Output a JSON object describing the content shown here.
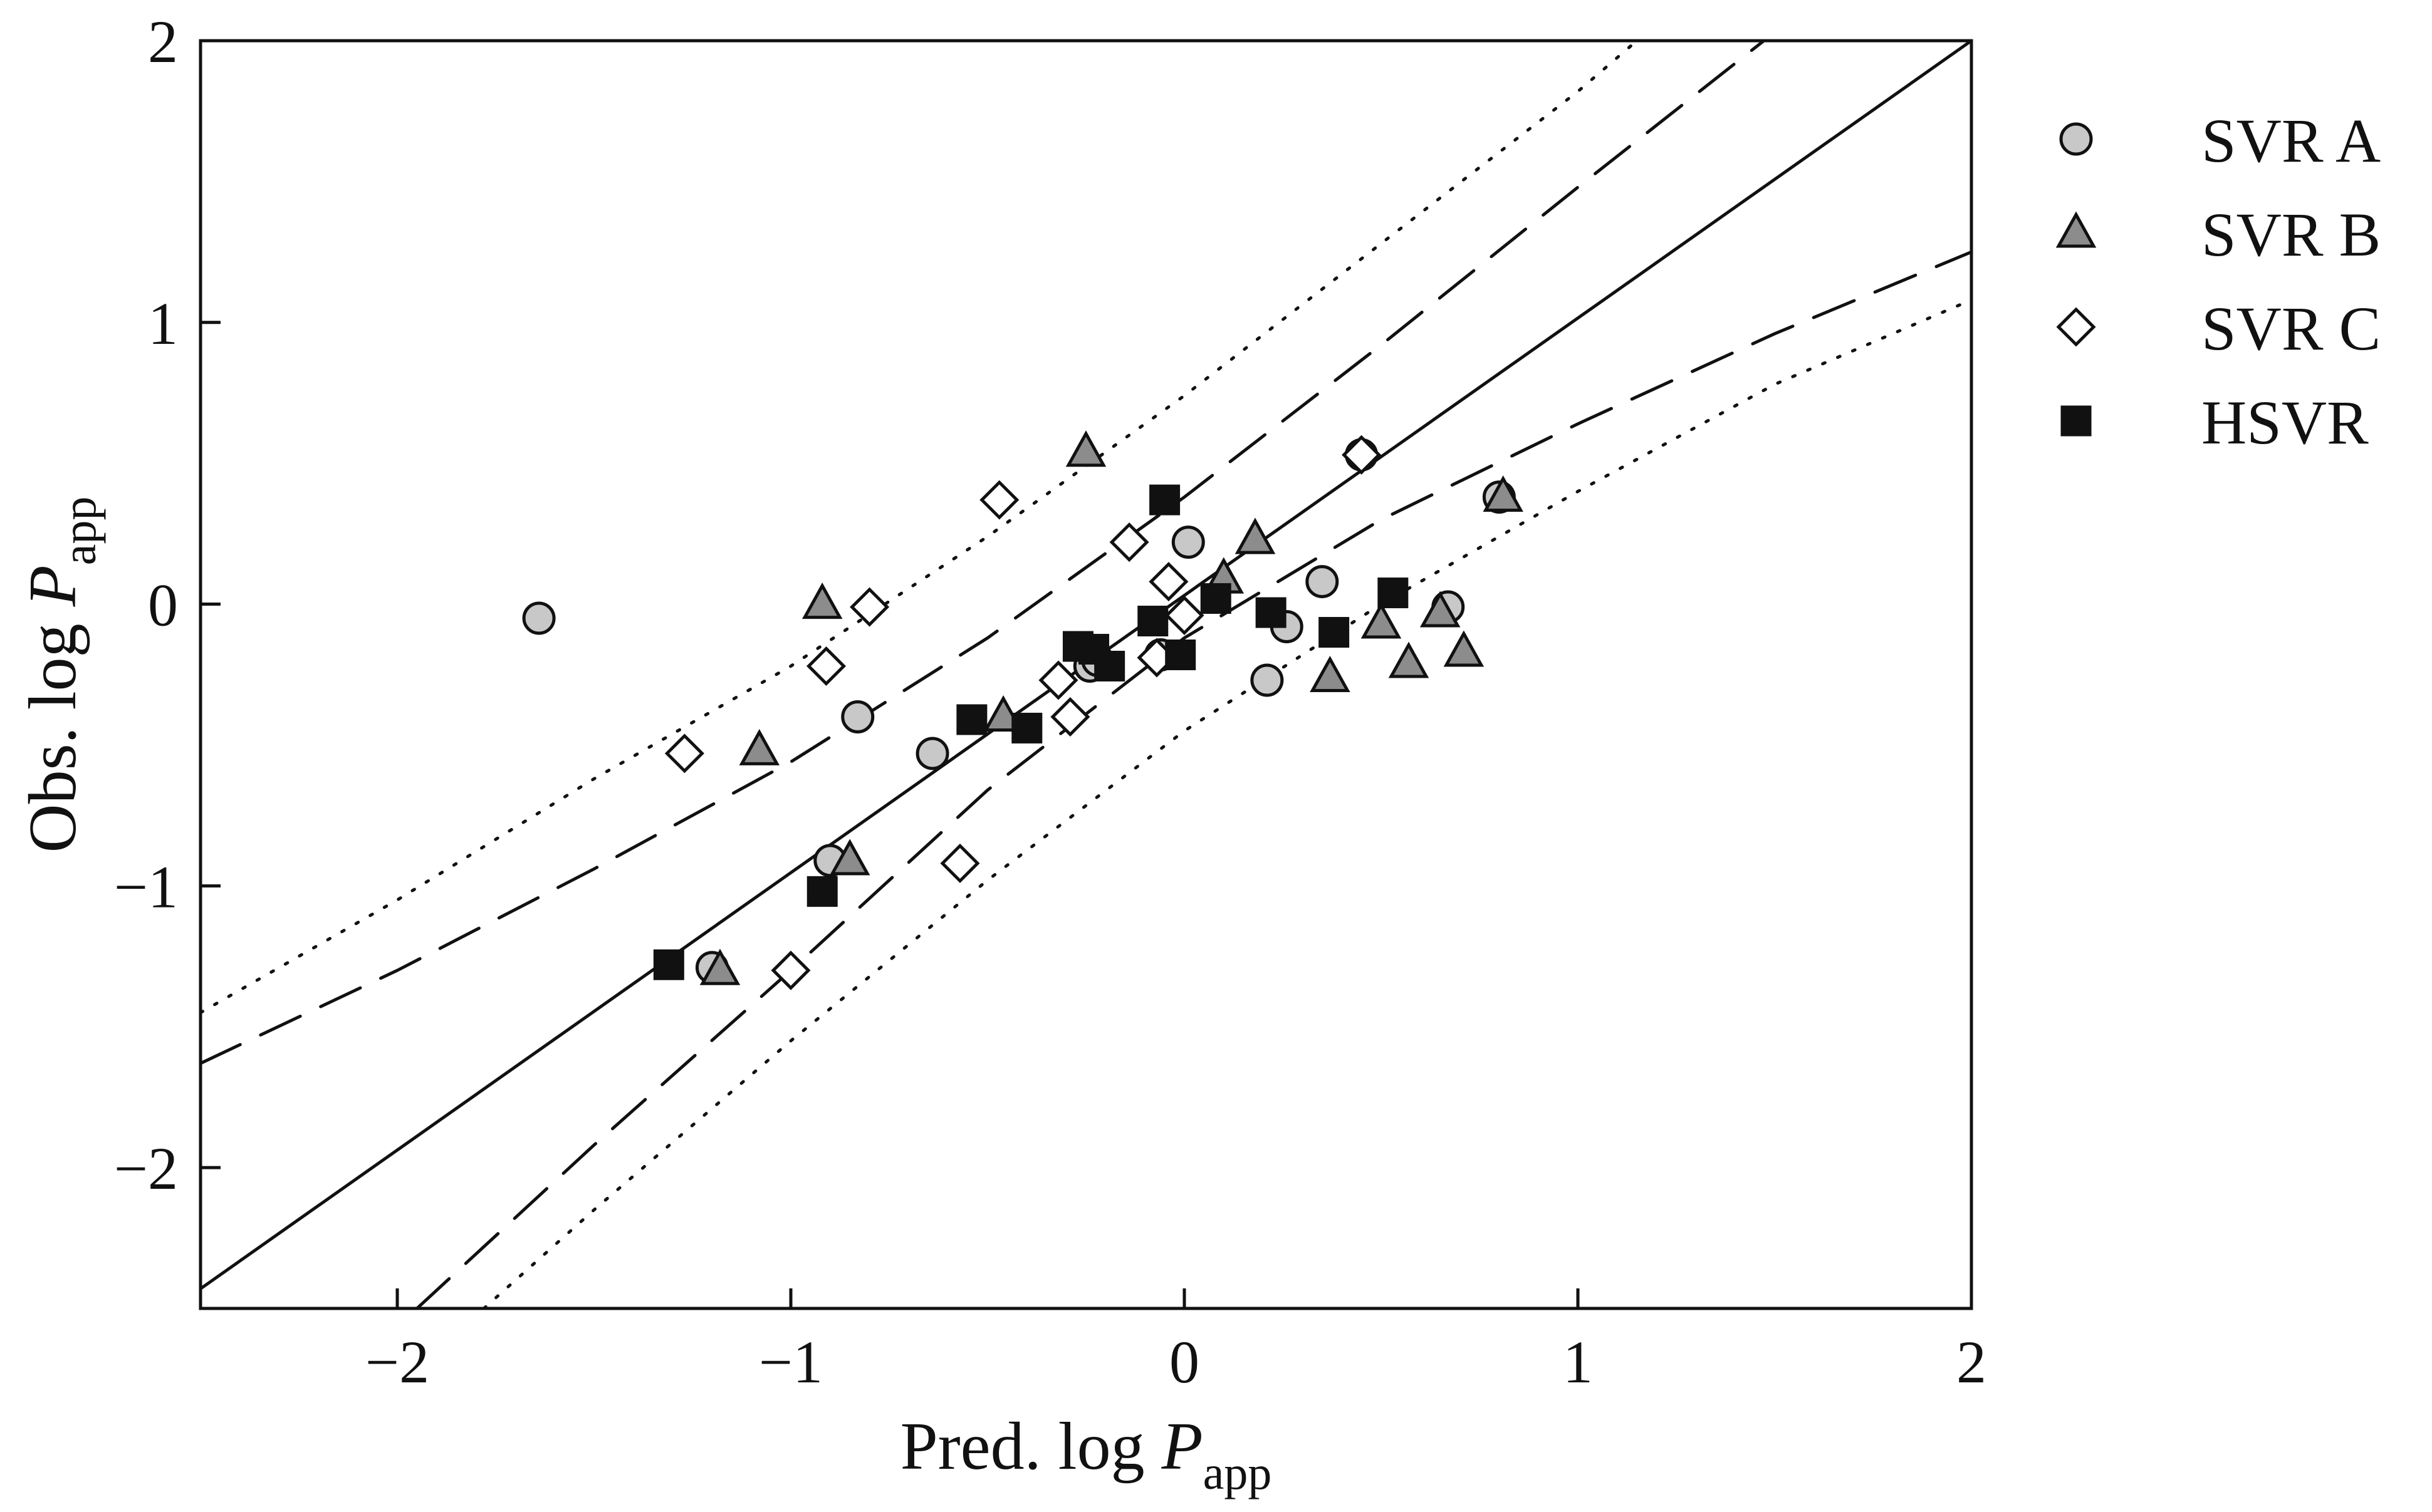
{
  "chart_data": {
    "type": "scatter",
    "title": "",
    "xlabel": {
      "main": "Pred. log ",
      "var": "P",
      "sub": "app"
    },
    "ylabel": {
      "main": "Obs. log ",
      "var": "P",
      "sub": "app"
    },
    "xlim": [
      -2.5,
      2
    ],
    "ylim": [
      -2.5,
      2
    ],
    "grid": false,
    "legend_position": "outside-right",
    "xticks": [
      {
        "value": -2,
        "label": "−2"
      },
      {
        "value": -1,
        "label": "−1"
      },
      {
        "value": 0,
        "label": "0"
      },
      {
        "value": 1,
        "label": "1"
      },
      {
        "value": 2,
        "label": "2"
      }
    ],
    "yticks": [
      {
        "value": -2,
        "label": "−2"
      },
      {
        "value": -1,
        "label": "−1"
      },
      {
        "value": 0,
        "label": "0"
      },
      {
        "value": 1,
        "label": "1"
      },
      {
        "value": 2,
        "label": "2"
      }
    ],
    "series": [
      {
        "name": "SVR A",
        "marker": "circle",
        "color": "#c8c8c8",
        "x": [
          -1.64,
          -1.2,
          -0.9,
          -0.83,
          -0.64,
          -0.24,
          -0.22,
          -0.06,
          0.01,
          0.21,
          0.26,
          0.35,
          0.45,
          0.67,
          0.8
        ],
        "y": [
          -0.05,
          -1.29,
          -0.91,
          -0.4,
          -0.53,
          -0.22,
          -0.2,
          -0.18,
          0.22,
          -0.27,
          -0.08,
          0.08,
          0.53,
          -0.01,
          0.38
        ]
      },
      {
        "name": "SVR B",
        "marker": "triangle",
        "color": "#8c8c8c",
        "x": [
          -1.18,
          -1.08,
          -0.92,
          -0.85,
          -0.46,
          -0.25,
          0.1,
          0.18,
          0.37,
          0.5,
          0.57,
          0.65,
          0.71,
          0.81
        ],
        "y": [
          -1.3,
          -0.52,
          0.0,
          -0.91,
          -0.4,
          0.54,
          0.09,
          0.23,
          -0.26,
          -0.07,
          -0.21,
          -0.03,
          -0.17,
          0.38
        ]
      },
      {
        "name": "SVR C",
        "marker": "diamond",
        "color": "#ffffff",
        "x": [
          -1.27,
          -1.0,
          -0.91,
          -0.8,
          -0.57,
          -0.47,
          -0.32,
          -0.29,
          -0.14,
          -0.07,
          -0.04,
          0.0,
          0.45
        ],
        "y": [
          -0.53,
          -1.3,
          -0.22,
          -0.01,
          -0.92,
          0.37,
          -0.27,
          -0.4,
          0.22,
          -0.19,
          0.08,
          -0.04,
          0.53
        ]
      },
      {
        "name": "HSVR",
        "marker": "square",
        "color": "#111111",
        "x": [
          -1.31,
          -0.92,
          -0.54,
          -0.4,
          -0.27,
          -0.23,
          -0.19,
          -0.08,
          -0.05,
          -0.01,
          0.08,
          0.22,
          0.38,
          0.53
        ],
        "y": [
          -1.28,
          -1.02,
          -0.41,
          -0.44,
          -0.15,
          -0.16,
          -0.22,
          -0.06,
          0.37,
          -0.18,
          0.02,
          -0.03,
          -0.1,
          0.04
        ]
      }
    ],
    "lines": [
      {
        "name": "regression-line",
        "style": "solid",
        "points": [
          [
            -2.5,
            -2.43
          ],
          [
            2.0,
            2.0
          ]
        ]
      },
      {
        "name": "confidence-band-upper",
        "style": "dashed",
        "points": [
          [
            -2.5,
            -1.63
          ],
          [
            -2.0,
            -1.3
          ],
          [
            -1.5,
            -0.94
          ],
          [
            -1.0,
            -0.56
          ],
          [
            -0.5,
            -0.12
          ],
          [
            0.0,
            0.38
          ],
          [
            0.5,
            0.92
          ],
          [
            1.0,
            1.48
          ],
          [
            1.5,
            2.03
          ]
        ]
      },
      {
        "name": "confidence-band-lower",
        "style": "dashed",
        "points": [
          [
            -1.95,
            -2.5
          ],
          [
            -1.5,
            -1.92
          ],
          [
            -1.0,
            -1.3
          ],
          [
            -0.5,
            -0.66
          ],
          [
            0.0,
            -0.12
          ],
          [
            0.5,
            0.3
          ],
          [
            1.0,
            0.64
          ],
          [
            1.5,
            0.96
          ],
          [
            2.0,
            1.25
          ]
        ]
      },
      {
        "name": "prediction-band-upper",
        "style": "dotted",
        "points": [
          [
            -2.5,
            -1.45
          ],
          [
            -2.0,
            -1.05
          ],
          [
            -1.5,
            -0.62
          ],
          [
            -1.0,
            -0.22
          ],
          [
            -0.5,
            0.24
          ],
          [
            0.0,
            0.74
          ],
          [
            0.5,
            1.28
          ],
          [
            1.0,
            1.82
          ],
          [
            1.15,
            2.0
          ]
        ]
      },
      {
        "name": "prediction-band-lower",
        "style": "dotted",
        "points": [
          [
            -1.78,
            -2.5
          ],
          [
            -1.5,
            -2.15
          ],
          [
            -1.0,
            -1.55
          ],
          [
            -0.5,
            -0.98
          ],
          [
            0.0,
            -0.45
          ],
          [
            0.5,
            0.0
          ],
          [
            1.0,
            0.4
          ],
          [
            1.5,
            0.78
          ],
          [
            2.0,
            1.08
          ]
        ]
      }
    ]
  }
}
